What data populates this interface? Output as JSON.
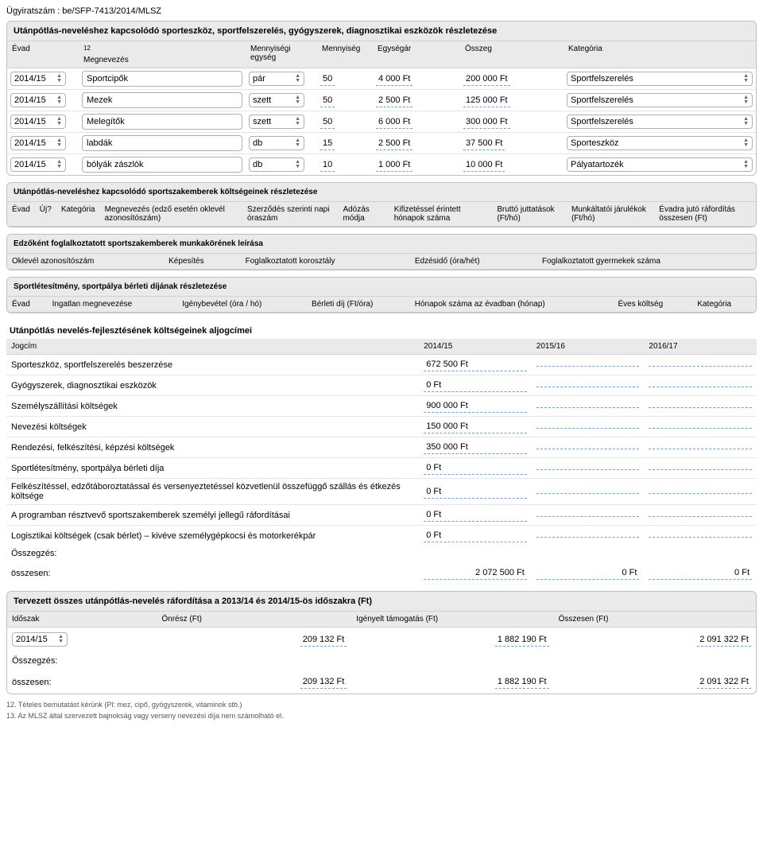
{
  "docNumber": "Ügyiratszám : be/SFP-7413/2014/MLSZ",
  "section1": {
    "title": "Utánpótlás-neveléshez kapcsolódó sporteszköz, sportfelszerelés, gyógyszerek, diagnosztikai eszközök részletezése",
    "headers": {
      "evad": "Évad",
      "sup": "12",
      "megnevezes": "Megnevezés",
      "mennyegyseg": "Mennyiségi egység",
      "mennyiseg": "Mennyiség",
      "egysegar": "Egységár",
      "osszeg": "Összeg",
      "kategoria": "Kategória"
    },
    "rows": [
      {
        "evad": "2014/15",
        "megnev": "Sportcipők",
        "unit": "pár",
        "qty": "50",
        "price": "4 000 Ft",
        "total": "200 000  Ft",
        "cat": "Sportfelszerelés"
      },
      {
        "evad": "2014/15",
        "megnev": "Mezek",
        "unit": "szett",
        "qty": "50",
        "price": "2 500 Ft",
        "total": "125 000  Ft",
        "cat": "Sportfelszerelés"
      },
      {
        "evad": "2014/15",
        "megnev": "Melegítők",
        "unit": "szett",
        "qty": "50",
        "price": "6 000 Ft",
        "total": "300 000  Ft",
        "cat": "Sportfelszerelés"
      },
      {
        "evad": "2014/15",
        "megnev": "labdák",
        "unit": "db",
        "qty": "15",
        "price": "2 500 Ft",
        "total": "37 500  Ft",
        "cat": "Sporteszköz"
      },
      {
        "evad": "2014/15",
        "megnev": "bólyák zászlók",
        "unit": "db",
        "qty": "10",
        "price": "1 000 Ft",
        "total": "10 000  Ft",
        "cat": "Pályatartozék"
      }
    ]
  },
  "section2": {
    "title": "Utánpótlás-neveléshez kapcsolódó sportszakemberek költségeinek részletezése",
    "headers": [
      "Évad",
      "Új?",
      "Kategória",
      "Megnevezés (edző esetén oklevél azonosítószám)",
      "Szerződés szerinti napi óraszám",
      "Adózás módja",
      "Kifizetéssel érintett hónapok száma",
      "Bruttó juttatások (Ft/hó)",
      "Munkáltatói járulékok (Ft/hó)",
      "Évadra jutó ráfordítás összesen (Ft)"
    ]
  },
  "section3": {
    "title": "Edzőként foglalkoztatott sportszakemberek munkakörének leírása",
    "headers": [
      "Oklevél azonosítószám",
      "Képesítés",
      "Foglalkoztatott korosztály",
      "Edzésidő (óra/hét)",
      "Foglalkoztatott gyermekek száma"
    ]
  },
  "section4": {
    "title": "Sportlétesítmény, sportpálya bérleti díjának részletezése",
    "headers": [
      "Évad",
      "Ingatlan megnevezése",
      "Igénybevétel (óra / hó)",
      "Bérleti díj (Ft/óra)",
      "Hónapok száma az évadban (hónap)",
      "Éves költség",
      "Kategória"
    ]
  },
  "section5": {
    "title": "Utánpótlás nevelés-fejlesztésének költségeinek aljogcímei",
    "headers": [
      "Jogcím",
      "2014/15",
      "2015/16",
      "2016/17"
    ],
    "rows": [
      {
        "label": "Sporteszköz, sportfelszerelés beszerzése",
        "v1": "672 500  Ft",
        "v2": "",
        "v3": ""
      },
      {
        "label": "Gyógyszerek, diagnosztikai eszközök",
        "v1": "0  Ft",
        "v2": "",
        "v3": ""
      },
      {
        "label": "Személyszállítási költségek",
        "v1": "900 000 Ft",
        "v2": "",
        "v3": ""
      },
      {
        "label": "Nevezési költségek",
        "v1": "150 000 Ft",
        "v2": "",
        "v3": ""
      },
      {
        "label": "Rendezési, felkészítési, képzési költségek",
        "v1": "350 000 Ft",
        "v2": "",
        "v3": ""
      },
      {
        "label": "Sportlétesítmény, sportpálya bérleti díja",
        "v1": "0  Ft",
        "v2": "",
        "v3": ""
      },
      {
        "label": "Felkészítéssel, edzőtáboroztatással és versenyeztetéssel közvetlenül összefüggő szállás és étkezés költsége",
        "v1": "0 Ft",
        "v2": "",
        "v3": ""
      },
      {
        "label": "A programban résztvevő sportszakemberek személyi jellegű ráfordításai",
        "v1": "0  Ft",
        "v2": "",
        "v3": ""
      },
      {
        "label": "Logisztikai költségek (csak bérlet) – kivéve személygépkocsi és motorkerékpár",
        "v1": "0 Ft",
        "v2": "",
        "v3": ""
      }
    ],
    "summaryLabel": "Összegzés:",
    "totalLabel": "összesen:",
    "totals": [
      "2 072 500 Ft",
      "0 Ft",
      "0 Ft"
    ]
  },
  "section6": {
    "title": "Tervezett összes utánpótlás-nevelés ráfordítása a 2013/14 és 2014/15-ös időszakra (Ft)",
    "headers": [
      "Időszak",
      "Önrész (Ft)",
      "Igényelt támogatás (Ft)",
      "Összesen (Ft)"
    ],
    "row": {
      "evad": "2014/15",
      "onresz": "209 132 Ft",
      "igenyelt": "1 882 190 Ft",
      "osszesen": "2 091 322 Ft"
    },
    "summaryLabel": "Összegzés:",
    "totalLabel": "összesen:",
    "totals": [
      "209 132 Ft",
      "1 882 190 Ft",
      "2 091 322 Ft"
    ]
  },
  "footnotes": {
    "n12": "12. Tételes bemutatást kérünk (Pl: mez, cipő, gyógyszerek, vitaminok stb.)",
    "n13": "13. Az MLSZ által szervezett bajnokság vagy verseny nevezési díja nem számolható el."
  },
  "colors": {
    "headerBg": "#eaeaea",
    "border": "#c0c0c0",
    "underline": "#7a9ec9"
  }
}
